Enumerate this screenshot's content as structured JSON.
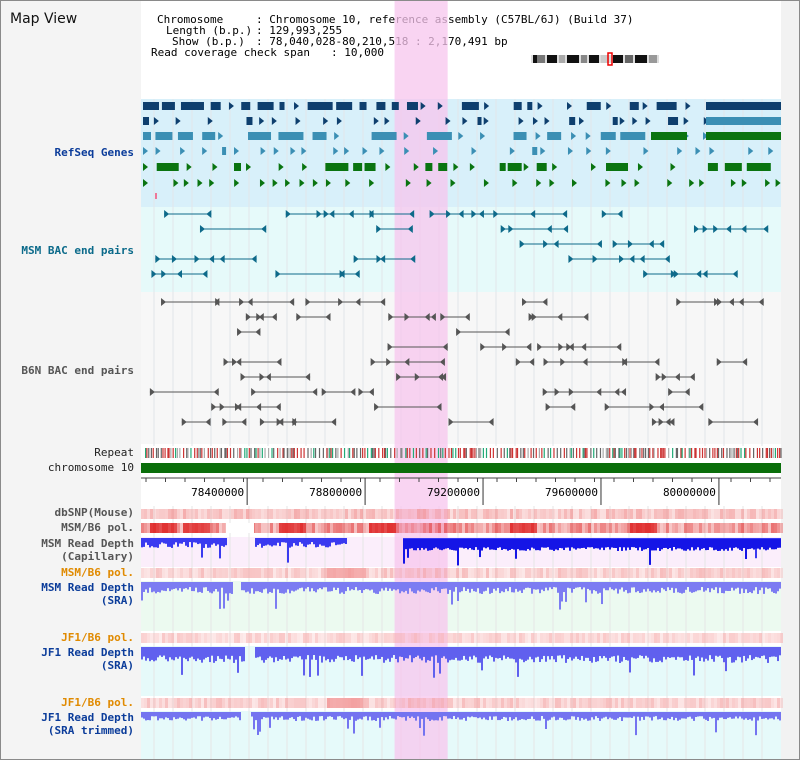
{
  "window": {
    "title": "Map View"
  },
  "info": {
    "chromosome_label": "Chromosome",
    "chromosome_value": ": Chromosome 10, reference assembly (C57BL/6J) (Build 37)",
    "length_label": "Length (b.p.)",
    "length_value": ": 129,993,255",
    "show_label": "Show (b.p.)",
    "show_value": ": 78,040,028-80,210,518 : 2,170,491 bp",
    "coverage_label": "Read coverage check span",
    "coverage_value": ": 10,000"
  },
  "tracks": {
    "refseq": "RefSeq Genes",
    "msm_bac": "MSM BAC end pairs",
    "b6n_bac": "B6N BAC end pairs",
    "repeat": "Repeat",
    "chromosome": "chromosome 10",
    "dbsnp": "dbSNP(Mouse)",
    "msm_b6_pol_1": "MSM/B6 pol.",
    "msm_depth_cap_1": "MSM Read Depth",
    "msm_depth_cap_2": "(Capillary)",
    "msm_b6_pol_2": "MSM/B6 pol.",
    "msm_depth_sra_1": "MSM Read Depth",
    "msm_depth_sra_2": "(SRA)",
    "jf1_b6_pol_1": "JF1/B6 pol.",
    "jf1_depth_sra_1": "JF1 Read Depth",
    "jf1_depth_sra_2": "(SRA)",
    "jf1_b6_pol_2": "JF1/B6 pol.",
    "jf1_depth_trim_1": "JF1 Read Depth",
    "jf1_depth_trim_2": "(SRA trimmed)"
  },
  "axis": {
    "ticks": [
      "78400000",
      "78800000",
      "79200000",
      "79600000",
      "80000000"
    ],
    "tick_values": [
      78400000,
      78800000,
      79200000,
      79600000,
      80000000
    ],
    "range": [
      78040028,
      80210518
    ]
  },
  "highlight_range": [
    78900000,
    79080000
  ],
  "colors": {
    "refseq_dark": "#0e3f6e",
    "refseq_mid": "#3b8fb4",
    "refseq_green": "#0a7410",
    "msm_bac": "#0e6a8a",
    "b6n_bac": "#555555",
    "depth_blue": "#1a1ae8",
    "depth_light": "#6f6ff0",
    "pol_red": "#e03030",
    "highlight": "#f7c6ee",
    "refseq_bg": "#d8f0fa",
    "msm_bg": "#e6fafa",
    "chromosome_bar": "#0a6e0a"
  }
}
